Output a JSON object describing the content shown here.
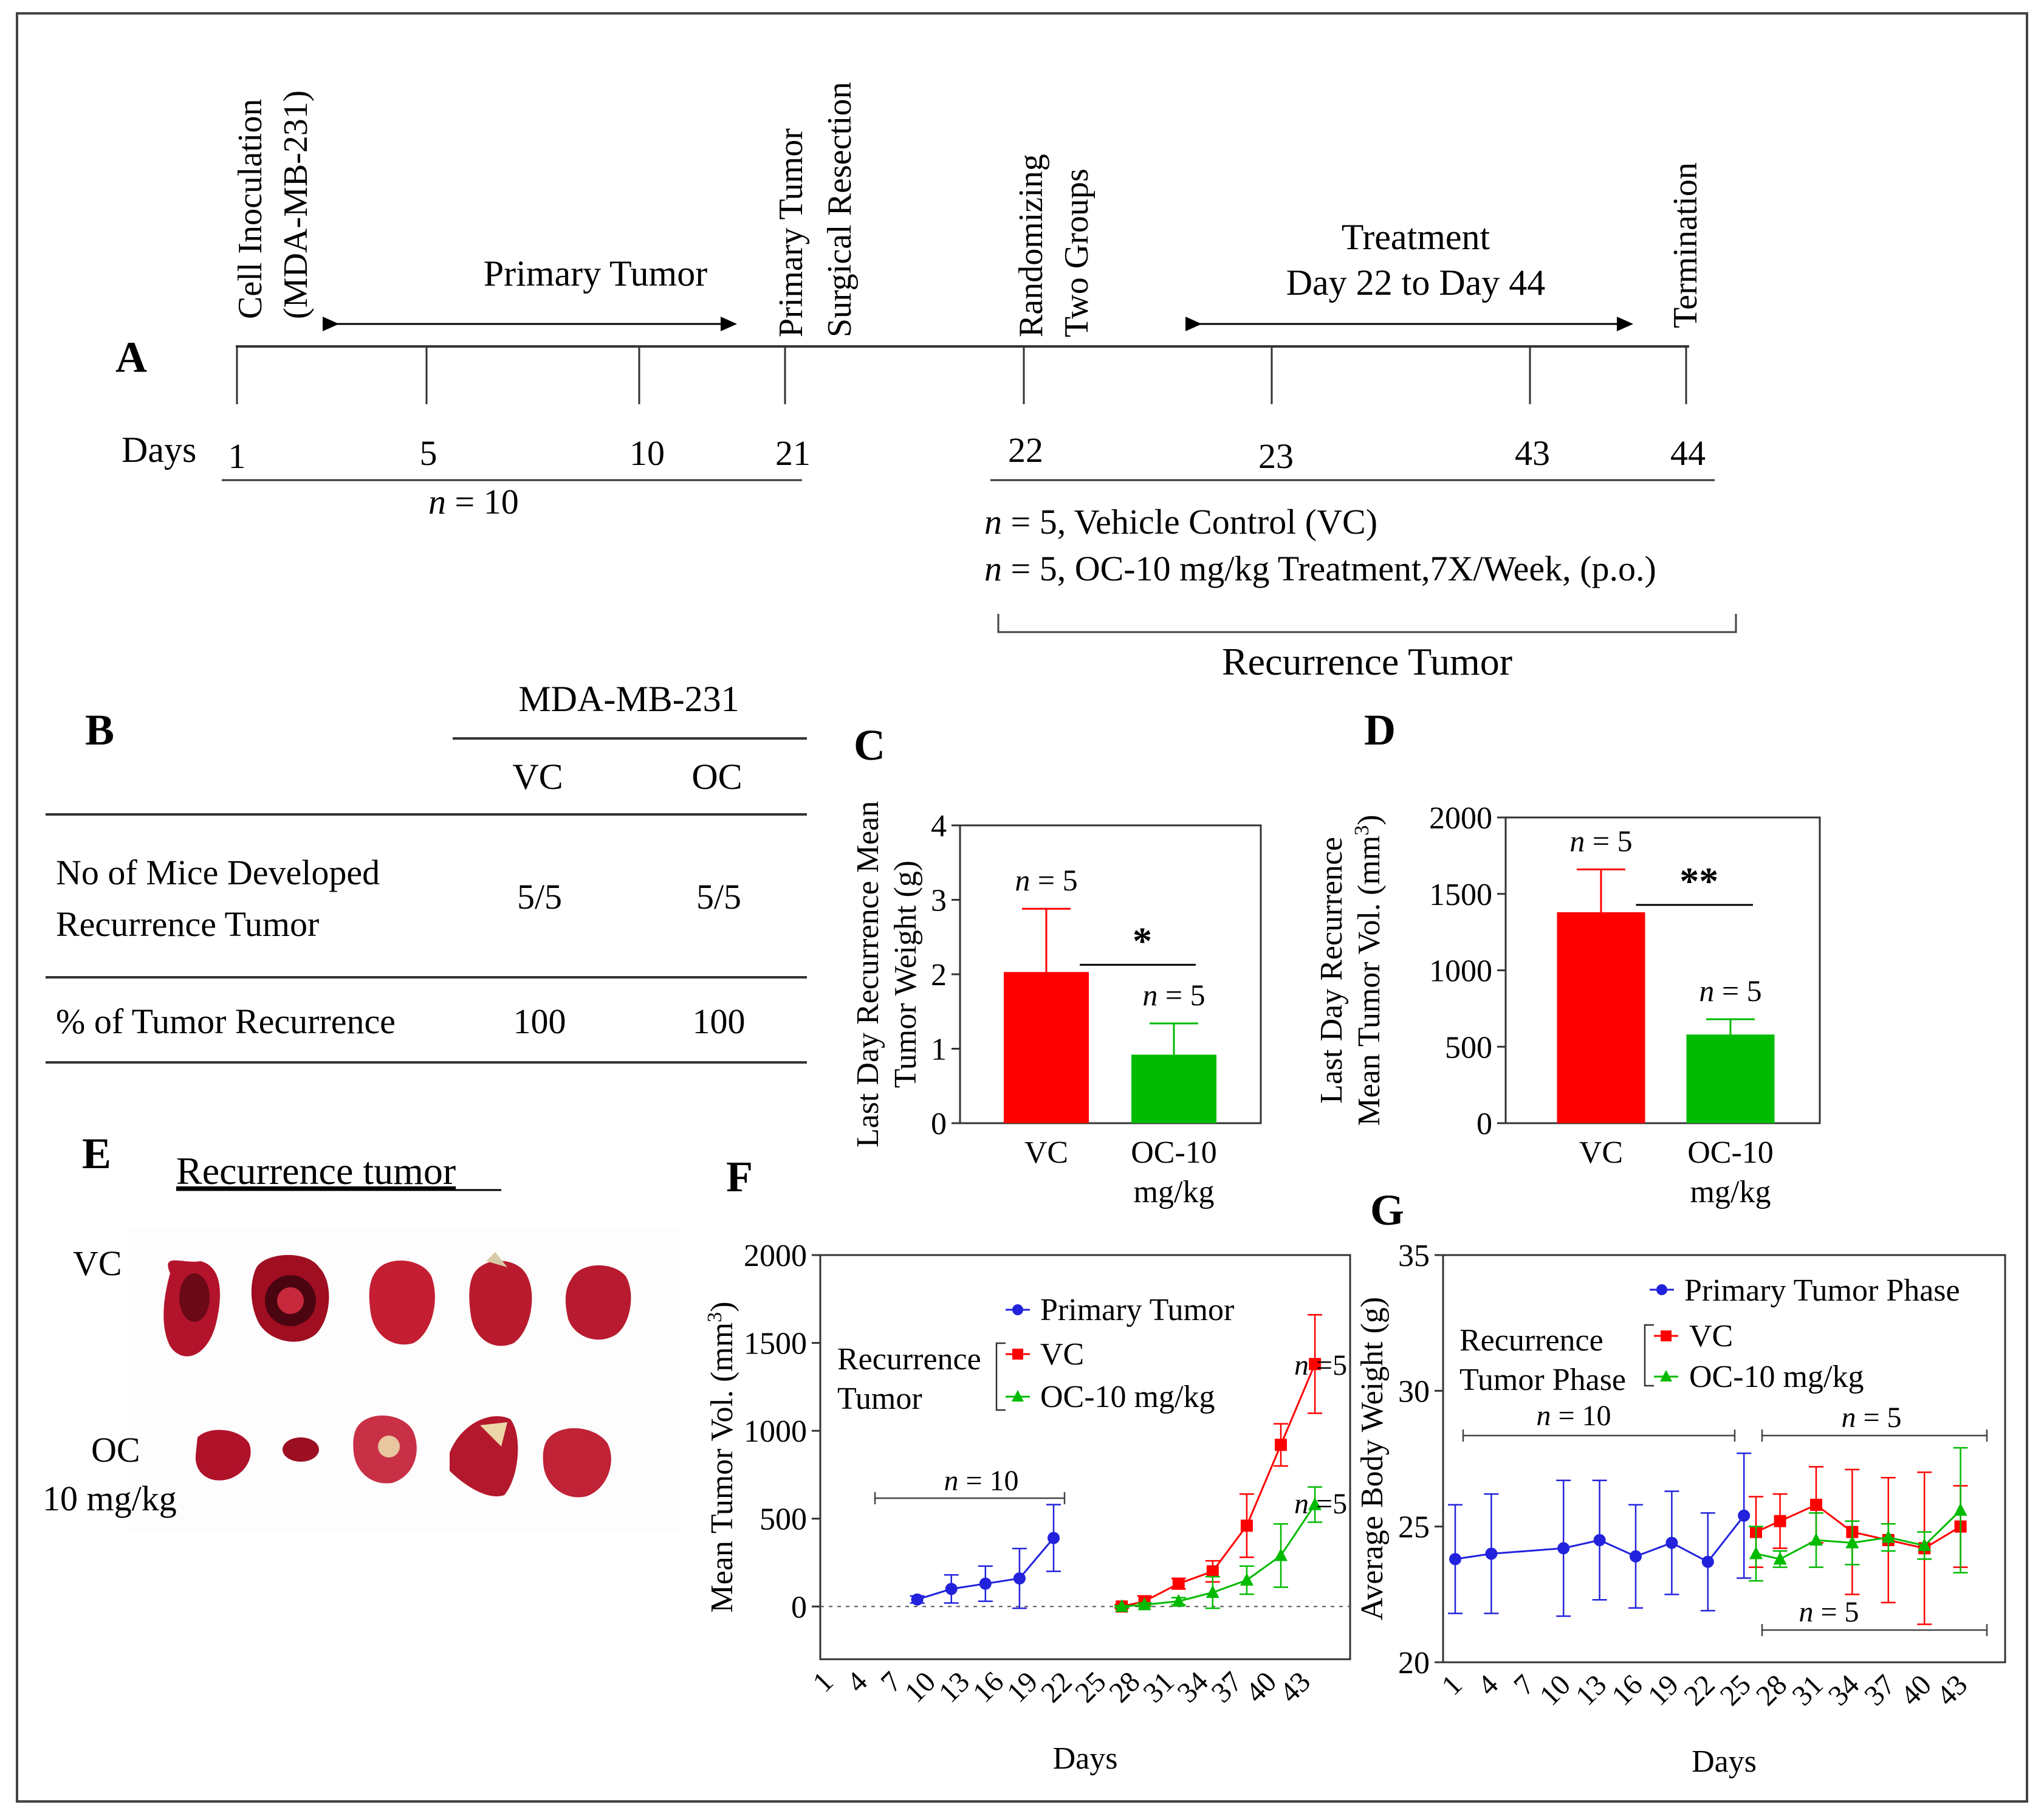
{
  "panels": {
    "A": "A",
    "B": "B",
    "C": "C",
    "D": "D",
    "E": "E",
    "F": "F",
    "G": "G"
  },
  "timeline": {
    "events": [
      {
        "line1": "Cell Inoculation",
        "line2": "(MDA-MB-231)"
      },
      {
        "line1": "Primary Tumor",
        "line2": "Surgical Resection"
      },
      {
        "line1": "Randomizing",
        "line2": "Two Groups"
      },
      {
        "line1": "Termination",
        "line2": ""
      }
    ],
    "primary_label": "Primary Tumor",
    "treatment_label1": "Treatment",
    "treatment_label2": "Day 22 to Day 44",
    "days_label": "Days",
    "day_ticks": [
      "1",
      "5",
      "10",
      "21",
      "22",
      "23",
      "43",
      "44"
    ],
    "n_primary": "= 10",
    "group_vc": "= 5, Vehicle Control (VC)",
    "group_oc": "= 5, OC-10 mg/kg Treatment,7X/Week, (p.o.)",
    "recurrence_label": "Recurrence Tumor"
  },
  "table": {
    "cell_line": "MDA-MB-231",
    "col_vc": "VC",
    "col_oc": "OC",
    "rows": [
      {
        "label1": "No of Mice Developed",
        "label2": "Recurrence  Tumor",
        "vc": "5/5",
        "oc": "5/5"
      },
      {
        "label1": "% of Tumor  Recurrence",
        "label2": "",
        "vc": "100",
        "oc": "100"
      }
    ]
  },
  "photo": {
    "title": "Recurrence tumor",
    "vc_label": "VC",
    "oc_label1": "OC",
    "oc_label2": "10 mg/kg"
  },
  "colors": {
    "vc": "#ff0000",
    "oc": "#00bb00",
    "primary": "#2222dd",
    "axis": "#333333"
  },
  "chart_data": [
    {
      "id": "C",
      "type": "bar",
      "ylabel1": "Last  Day Recurrence Mean",
      "ylabel2": "Tumor Weight (g)",
      "ylim": [
        0,
        4
      ],
      "yticks": [
        "0",
        "1",
        "2",
        "3",
        "4"
      ],
      "categories": [
        "VC",
        "OC-10"
      ],
      "category_sub": [
        "",
        "mg/kg"
      ],
      "values": [
        2.03,
        0.92
      ],
      "errors": [
        0.85,
        0.42
      ],
      "n_labels": [
        "= 5",
        "= 5"
      ],
      "significance": "*"
    },
    {
      "id": "D",
      "type": "bar",
      "ylabel1": "Last Day Recurrence",
      "ylabel2": "Mean Tumor Vol. (mm",
      "ylim": [
        0,
        2000
      ],
      "yticks": [
        "0",
        "500",
        "1000",
        "1500",
        "2000"
      ],
      "categories": [
        "VC",
        "OC-10"
      ],
      "category_sub": [
        "",
        "mg/kg"
      ],
      "values": [
        1380,
        580
      ],
      "errors": [
        280,
        100
      ],
      "n_labels": [
        "= 5",
        "= 5"
      ],
      "significance": "**"
    },
    {
      "id": "F",
      "type": "line",
      "xlabel": "Days",
      "ylabel": "Mean Tumor Vol. (mm",
      "ylim": [
        -300,
        2000
      ],
      "yticks": [
        "0",
        "500",
        "1000",
        "1500",
        "2000"
      ],
      "xticks": [
        "1",
        "4",
        "7",
        "10",
        "13",
        "16",
        "19",
        "22",
        "25",
        "28",
        "31",
        "34",
        "37",
        "40",
        "43"
      ],
      "legend": {
        "primary": "Primary Tumor",
        "rec1": "Recurrence",
        "rec2": "Tumor",
        "vc": "VC",
        "oc": "OC-10 mg/kg"
      },
      "n_primary": "= 10",
      "n_vc": "=5",
      "n_oc": "=5",
      "series": [
        {
          "name": "Primary Tumor",
          "x": [
            9,
            12,
            15,
            18,
            21
          ],
          "y": [
            40,
            100,
            130,
            160,
            390
          ],
          "err": [
            20,
            80,
            100,
            170,
            190
          ]
        },
        {
          "name": "VC",
          "x": [
            27,
            29,
            32,
            35,
            38,
            41,
            44
          ],
          "y": [
            0,
            30,
            130,
            200,
            460,
            920,
            1380
          ],
          "err": [
            10,
            30,
            30,
            60,
            180,
            120,
            280
          ]
        },
        {
          "name": "OC-10 mg/kg",
          "x": [
            27,
            29,
            32,
            35,
            38,
            41,
            44
          ],
          "y": [
            0,
            10,
            30,
            80,
            150,
            290,
            580
          ],
          "err": [
            5,
            10,
            20,
            90,
            80,
            180,
            100
          ]
        }
      ]
    },
    {
      "id": "G",
      "type": "line",
      "xlabel": "Days",
      "ylabel": "Average Body Weight (g)",
      "ylim": [
        20,
        35
      ],
      "yticks": [
        "20",
        "25",
        "30",
        "35"
      ],
      "xticks": [
        "1",
        "4",
        "7",
        "10",
        "13",
        "16",
        "19",
        "22",
        "25",
        "28",
        "31",
        "34",
        "37",
        "40",
        "43"
      ],
      "legend": {
        "primary": "Primary Tumor Phase",
        "rec1": "Recurrence",
        "rec2": "Tumor Phase",
        "vc": "VC",
        "oc": "OC-10 mg/kg"
      },
      "n_primary": "= 10",
      "n_rec_top": "= 5",
      "n_rec_bottom": "= 5",
      "series": [
        {
          "name": "Primary Tumor Phase",
          "x": [
            1,
            4,
            10,
            13,
            16,
            19,
            22,
            25
          ],
          "y": [
            23.8,
            24.0,
            24.2,
            24.5,
            23.9,
            24.4,
            23.7,
            25.4
          ],
          "err": [
            2.0,
            2.2,
            2.5,
            2.2,
            1.9,
            1.9,
            1.8,
            2.3
          ]
        },
        {
          "name": "VC",
          "x": [
            26,
            28,
            31,
            34,
            37,
            40,
            43
          ],
          "y": [
            24.8,
            25.2,
            25.8,
            24.8,
            24.5,
            24.2,
            25.0
          ],
          "err": [
            1.3,
            1.0,
            1.4,
            2.3,
            2.3,
            2.8,
            1.5
          ]
        },
        {
          "name": "OC-10 mg/kg",
          "x": [
            26,
            28,
            31,
            34,
            37,
            40,
            43
          ],
          "y": [
            24.0,
            23.8,
            24.5,
            24.4,
            24.6,
            24.3,
            25.6
          ],
          "err": [
            1.0,
            0.3,
            1.0,
            0.8,
            0.5,
            0.5,
            2.3
          ]
        }
      ]
    }
  ]
}
